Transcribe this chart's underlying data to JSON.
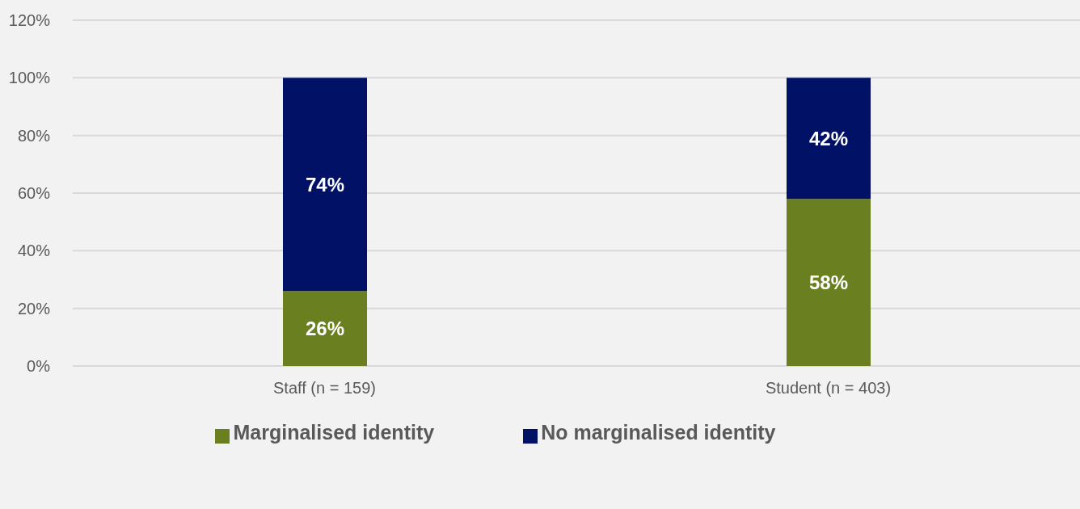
{
  "chart_data": {
    "type": "bar",
    "stacked": true,
    "categories": [
      "Staff (n = 159)",
      "Student (n = 403)"
    ],
    "series": [
      {
        "name": "Marginalised identity",
        "color": "#6a7f1f",
        "values": [
          26,
          58
        ],
        "value_labels": [
          "26%",
          "58%"
        ]
      },
      {
        "name": "No marginalised identity",
        "color": "#001166",
        "values": [
          74,
          42
        ],
        "value_labels": [
          "74%",
          "42%"
        ]
      }
    ],
    "ylim": [
      0,
      120
    ],
    "yticks": [
      {
        "value": 0,
        "label": "0%"
      },
      {
        "value": 20,
        "label": "20%"
      },
      {
        "value": 40,
        "label": "40%"
      },
      {
        "value": 60,
        "label": "60%"
      },
      {
        "value": 80,
        "label": "80%"
      },
      {
        "value": 100,
        "label": "100%"
      },
      {
        "value": 120,
        "label": "120%"
      }
    ],
    "grid": "y",
    "legend": "bottom"
  }
}
